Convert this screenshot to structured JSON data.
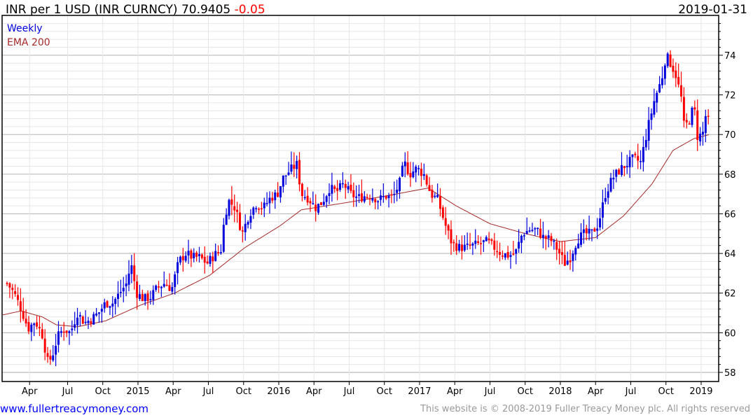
{
  "header": {
    "title": "INR per 1 USD (INR CURNCY) 70.9405",
    "change": "-0.05",
    "date": "2019-01-31"
  },
  "footer": {
    "site": "www.fullertreacymoney.com",
    "copyright": "This website is © 2008-2019 Fuller Treacy Money plc. All rights reserved"
  },
  "colors": {
    "up": "#0000dd",
    "down": "#ff0000",
    "ema": "#a52a2a",
    "grid_major": "#bbbbbb",
    "grid_minor": "#e6e6e6"
  },
  "chart_data": {
    "type": "candlestick",
    "title": "INR per 1 USD (INR CURNCY)",
    "last": 70.9405,
    "change": -0.05,
    "legend": [
      {
        "name": "Weekly",
        "color": "#0000dd"
      },
      {
        "name": "EMA 200",
        "color": "#a52a2a"
      }
    ],
    "legend_placement": "top-left",
    "ylim": [
      57.54,
      76.01
    ],
    "xlim": [
      2014.0,
      2019.11
    ],
    "yticks": [
      58,
      60,
      62,
      64,
      66,
      68,
      70,
      72,
      74
    ],
    "xticks": [
      {
        "t": 2014.23,
        "label": "Apr"
      },
      {
        "t": 2014.5,
        "label": "Jul"
      },
      {
        "t": 2014.75,
        "label": "Oct"
      },
      {
        "t": 2015.0,
        "label": "2015"
      },
      {
        "t": 2015.25,
        "label": "Apr"
      },
      {
        "t": 2015.5,
        "label": "Jul"
      },
      {
        "t": 2015.75,
        "label": "Oct"
      },
      {
        "t": 2016.0,
        "label": "2016"
      },
      {
        "t": 2016.25,
        "label": "Apr"
      },
      {
        "t": 2016.5,
        "label": "Jul"
      },
      {
        "t": 2016.75,
        "label": "Oct"
      },
      {
        "t": 2017.0,
        "label": "2017"
      },
      {
        "t": 2017.25,
        "label": "Apr"
      },
      {
        "t": 2017.5,
        "label": "Jul"
      },
      {
        "t": 2017.75,
        "label": "Oct"
      },
      {
        "t": 2018.0,
        "label": "2018"
      },
      {
        "t": 2018.25,
        "label": "Apr"
      },
      {
        "t": 2018.5,
        "label": "Jul"
      },
      {
        "t": 2018.75,
        "label": "Oct"
      },
      {
        "t": 2019.0,
        "label": "2019"
      }
    ],
    "close_path": [
      [
        2014.07,
        62.5
      ],
      [
        2014.12,
        62.0
      ],
      [
        2014.17,
        61.2
      ],
      [
        2014.22,
        60.2
      ],
      [
        2014.27,
        60.6
      ],
      [
        2014.32,
        59.9
      ],
      [
        2014.36,
        58.5
      ],
      [
        2014.39,
        58.8
      ],
      [
        2014.43,
        59.8
      ],
      [
        2014.47,
        60.2
      ],
      [
        2014.52,
        60.0
      ],
      [
        2014.57,
        61.0
      ],
      [
        2014.62,
        60.5
      ],
      [
        2014.67,
        60.7
      ],
      [
        2014.72,
        61.0
      ],
      [
        2014.77,
        61.5
      ],
      [
        2014.82,
        61.5
      ],
      [
        2014.87,
        62.0
      ],
      [
        2014.92,
        62.5
      ],
      [
        2014.95,
        63.5
      ],
      [
        2014.99,
        62.0
      ],
      [
        2015.04,
        61.7
      ],
      [
        2015.09,
        61.8
      ],
      [
        2015.14,
        62.3
      ],
      [
        2015.19,
        62.5
      ],
      [
        2015.24,
        62.2
      ],
      [
        2015.29,
        63.6
      ],
      [
        2015.34,
        64.0
      ],
      [
        2015.39,
        63.8
      ],
      [
        2015.44,
        63.8
      ],
      [
        2015.49,
        63.5
      ],
      [
        2015.54,
        63.9
      ],
      [
        2015.59,
        64.2
      ],
      [
        2015.61,
        65.5
      ],
      [
        2015.64,
        66.7
      ],
      [
        2015.69,
        66.3
      ],
      [
        2015.74,
        65.0
      ],
      [
        2015.79,
        66.0
      ],
      [
        2015.84,
        66.5
      ],
      [
        2015.89,
        66.3
      ],
      [
        2015.94,
        66.8
      ],
      [
        2015.99,
        67.0
      ],
      [
        2016.03,
        67.8
      ],
      [
        2016.08,
        68.2
      ],
      [
        2016.13,
        68.5
      ],
      [
        2016.16,
        67.0
      ],
      [
        2016.21,
        66.8
      ],
      [
        2016.26,
        66.3
      ],
      [
        2016.31,
        66.6
      ],
      [
        2016.36,
        67.3
      ],
      [
        2016.41,
        67.1
      ],
      [
        2016.46,
        67.5
      ],
      [
        2016.51,
        67.0
      ],
      [
        2016.56,
        66.8
      ],
      [
        2016.61,
        66.9
      ],
      [
        2016.66,
        66.9
      ],
      [
        2016.71,
        66.7
      ],
      [
        2016.76,
        66.9
      ],
      [
        2016.81,
        66.8
      ],
      [
        2016.86,
        67.6
      ],
      [
        2016.89,
        68.6
      ],
      [
        2016.93,
        68.0
      ],
      [
        2016.98,
        68.3
      ],
      [
        2017.03,
        68.0
      ],
      [
        2017.08,
        67.0
      ],
      [
        2017.13,
        66.7
      ],
      [
        2017.18,
        65.5
      ],
      [
        2017.23,
        64.5
      ],
      [
        2017.28,
        64.3
      ],
      [
        2017.33,
        64.3
      ],
      [
        2017.38,
        64.4
      ],
      [
        2017.43,
        64.5
      ],
      [
        2017.48,
        64.6
      ],
      [
        2017.53,
        64.3
      ],
      [
        2017.58,
        64.0
      ],
      [
        2017.63,
        63.9
      ],
      [
        2017.68,
        64.0
      ],
      [
        2017.73,
        65.0
      ],
      [
        2017.78,
        65.2
      ],
      [
        2017.83,
        65.2
      ],
      [
        2017.88,
        64.8
      ],
      [
        2017.93,
        64.7
      ],
      [
        2017.98,
        64.2
      ],
      [
        2018.03,
        63.5
      ],
      [
        2018.07,
        63.8
      ],
      [
        2018.12,
        64.7
      ],
      [
        2018.17,
        65.0
      ],
      [
        2018.22,
        65.0
      ],
      [
        2018.27,
        65.5
      ],
      [
        2018.32,
        67.0
      ],
      [
        2018.37,
        67.8
      ],
      [
        2018.42,
        68.2
      ],
      [
        2018.47,
        68.5
      ],
      [
        2018.52,
        68.8
      ],
      [
        2018.57,
        68.6
      ],
      [
        2018.62,
        70.3
      ],
      [
        2018.67,
        71.8
      ],
      [
        2018.72,
        72.8
      ],
      [
        2018.75,
        74.0
      ],
      [
        2018.79,
        73.5
      ],
      [
        2018.82,
        73.0
      ],
      [
        2018.86,
        71.8
      ],
      [
        2018.88,
        70.3
      ],
      [
        2018.92,
        70.8
      ],
      [
        2018.95,
        71.5
      ],
      [
        2018.97,
        69.9
      ],
      [
        2019.01,
        70.0
      ],
      [
        2019.04,
        71.3
      ],
      [
        2019.06,
        70.94
      ]
    ],
    "ema200": [
      [
        2014.04,
        60.9
      ],
      [
        2014.17,
        61.1
      ],
      [
        2014.32,
        60.8
      ],
      [
        2014.42,
        60.4
      ],
      [
        2014.57,
        60.3
      ],
      [
        2014.77,
        60.6
      ],
      [
        2015.02,
        61.4
      ],
      [
        2015.26,
        62.0
      ],
      [
        2015.51,
        62.9
      ],
      [
        2015.76,
        64.3
      ],
      [
        2016.01,
        65.4
      ],
      [
        2016.16,
        66.2
      ],
      [
        2016.51,
        66.6
      ],
      [
        2016.76,
        66.9
      ],
      [
        2017.06,
        67.3
      ],
      [
        2017.26,
        66.4
      ],
      [
        2017.5,
        65.5
      ],
      [
        2017.75,
        65.0
      ],
      [
        2018.0,
        64.6
      ],
      [
        2018.25,
        64.8
      ],
      [
        2018.45,
        65.9
      ],
      [
        2018.65,
        67.5
      ],
      [
        2018.8,
        69.2
      ],
      [
        2018.95,
        69.8
      ],
      [
        2019.06,
        70.0
      ]
    ]
  }
}
